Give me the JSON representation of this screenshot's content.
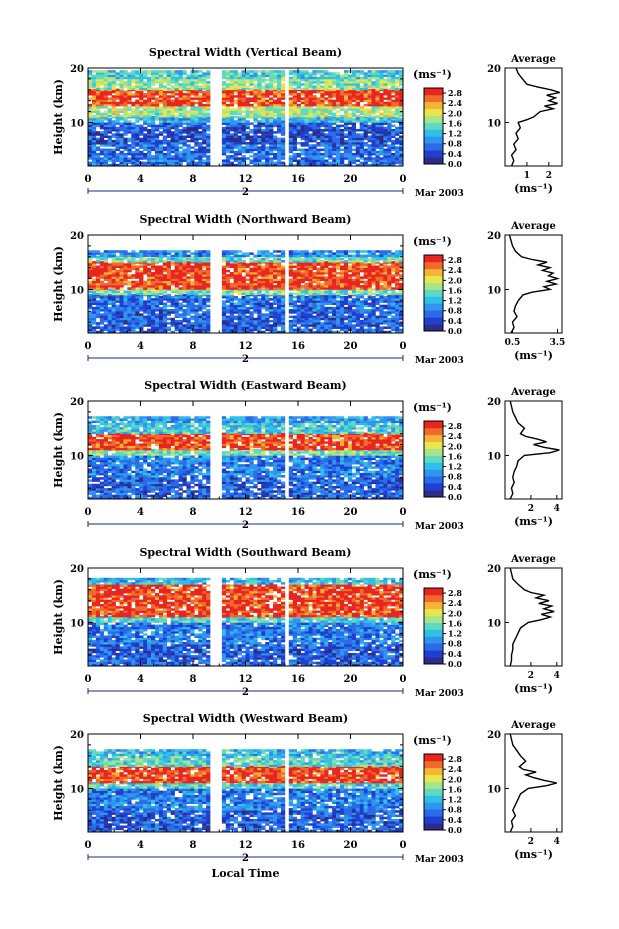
{
  "figure": {
    "x_title": "Local Time",
    "date_label": "Mar 2003",
    "day_label": "2",
    "colorbar_unit": "(ms⁻¹)",
    "colorbar_ticks": [
      "0.0",
      "0.4",
      "0.8",
      "1.2",
      "1.6",
      "2.0",
      "2.4",
      "2.8"
    ],
    "avg_title": "Average",
    "avg_unit": "(ms⁻¹)"
  },
  "colors": {
    "colormap": [
      "#2b2c8c",
      "#1f3fd0",
      "#2a6be8",
      "#2f95ef",
      "#2fc0e8",
      "#5fd9c0",
      "#a6e58a",
      "#e8e64a",
      "#f5b338",
      "#ef6a2c",
      "#e8251e"
    ]
  },
  "chart_data": [
    {
      "type": "heatmap",
      "title": "Spectral Width (Vertical Beam)",
      "xlabel": "",
      "ylabel": "Height (km)",
      "x_ticks": [
        "0",
        "4",
        "8",
        "12",
        "16",
        "20",
        "0"
      ],
      "y_ticks": [
        "10",
        "20"
      ],
      "ylim": [
        2,
        20
      ],
      "colorbar_range": [
        0.0,
        3.0
      ],
      "data_gaps_hours": [
        [
          9.2,
          10.2
        ],
        [
          14.9,
          15.2
        ],
        [
          19.0,
          19.2
        ]
      ],
      "layers_km": [
        {
          "from": 2,
          "to": 6,
          "value": 0.7
        },
        {
          "from": 6,
          "to": 10,
          "value": 0.5
        },
        {
          "from": 10,
          "to": 11,
          "value": 1.2
        },
        {
          "from": 11,
          "to": 13,
          "value": 1.8
        },
        {
          "from": 13,
          "to": 16,
          "value": 2.8
        },
        {
          "from": 16,
          "to": 18,
          "value": 1.7
        },
        {
          "from": 18,
          "to": 19.5,
          "value": 1.4
        }
      ],
      "average_profile": {
        "title": "Average",
        "xlabel": "(ms⁻¹)",
        "x_ticks": [
          "1",
          "2"
        ],
        "xlim": [
          0,
          2.6
        ],
        "y_ticks": [
          "10",
          "20"
        ],
        "ylim": [
          2,
          20
        ],
        "points": [
          [
            0.3,
            2
          ],
          [
            0.4,
            3
          ],
          [
            0.3,
            4
          ],
          [
            0.5,
            5
          ],
          [
            0.4,
            6
          ],
          [
            0.6,
            7
          ],
          [
            0.5,
            8
          ],
          [
            0.7,
            9
          ],
          [
            0.6,
            10
          ],
          [
            1.0,
            10.5
          ],
          [
            1.3,
            11
          ],
          [
            1.6,
            12
          ],
          [
            2.2,
            12.5
          ],
          [
            1.8,
            13
          ],
          [
            2.4,
            13.5
          ],
          [
            2.0,
            14
          ],
          [
            2.3,
            14.5
          ],
          [
            1.9,
            15
          ],
          [
            2.5,
            15.5
          ],
          [
            2.1,
            16
          ],
          [
            1.5,
            16.5
          ],
          [
            1.0,
            17
          ],
          [
            0.8,
            18
          ],
          [
            0.6,
            19
          ],
          [
            0.5,
            20
          ]
        ]
      }
    },
    {
      "type": "heatmap",
      "title": "Spectral Width (Northward Beam)",
      "xlabel": "",
      "ylabel": "Height (km)",
      "x_ticks": [
        "0",
        "4",
        "8",
        "12",
        "16",
        "20",
        "0"
      ],
      "y_ticks": [
        "10",
        "20"
      ],
      "ylim": [
        2,
        20
      ],
      "colorbar_range": [
        0.0,
        3.0
      ],
      "data_gaps_hours": [
        [
          9.2,
          10.2
        ],
        [
          14.9,
          15.2
        ],
        [
          19.0,
          19.2
        ]
      ],
      "layers_km": [
        {
          "from": 2,
          "to": 6,
          "value": 0.6
        },
        {
          "from": 6,
          "to": 9,
          "value": 0.7
        },
        {
          "from": 9,
          "to": 10,
          "value": 1.6
        },
        {
          "from": 10,
          "to": 15,
          "value": 2.8
        },
        {
          "from": 15,
          "to": 16,
          "value": 1.5
        },
        {
          "from": 16,
          "to": 17,
          "value": 0.9
        }
      ],
      "average_profile": {
        "title": "Average",
        "xlabel": "(ms⁻¹)",
        "x_ticks": [
          "0.5",
          "3.5"
        ],
        "xlim": [
          0,
          3.8
        ],
        "y_ticks": [
          "10",
          "20"
        ],
        "ylim": [
          2,
          20
        ],
        "points": [
          [
            0.4,
            2
          ],
          [
            0.6,
            3
          ],
          [
            0.5,
            4
          ],
          [
            0.8,
            5
          ],
          [
            0.6,
            6
          ],
          [
            0.7,
            7
          ],
          [
            0.9,
            8
          ],
          [
            1.2,
            9
          ],
          [
            1.8,
            9.5
          ],
          [
            3.0,
            10
          ],
          [
            2.6,
            10.5
          ],
          [
            3.4,
            11
          ],
          [
            2.8,
            11.5
          ],
          [
            3.5,
            12
          ],
          [
            2.9,
            12.5
          ],
          [
            3.2,
            13
          ],
          [
            2.5,
            13.5
          ],
          [
            3.0,
            14
          ],
          [
            2.2,
            14.5
          ],
          [
            2.8,
            15
          ],
          [
            1.8,
            15.5
          ],
          [
            1.1,
            16
          ],
          [
            0.7,
            17
          ],
          [
            0.5,
            18
          ],
          [
            0.4,
            19
          ],
          [
            0.3,
            20
          ]
        ]
      }
    },
    {
      "type": "heatmap",
      "title": "Spectral Width (Eastward Beam)",
      "xlabel": "",
      "ylabel": "Height (km)",
      "x_ticks": [
        "0",
        "4",
        "8",
        "12",
        "16",
        "20",
        "0"
      ],
      "y_ticks": [
        "10",
        "20"
      ],
      "ylim": [
        2,
        20
      ],
      "colorbar_range": [
        0.0,
        3.0
      ],
      "data_gaps_hours": [
        [
          9.2,
          10.2
        ],
        [
          14.9,
          15.2
        ],
        [
          19.0,
          19.2
        ]
      ],
      "layers_km": [
        {
          "from": 2,
          "to": 6,
          "value": 0.6
        },
        {
          "from": 6,
          "to": 10,
          "value": 0.8
        },
        {
          "from": 10,
          "to": 11,
          "value": 1.6
        },
        {
          "from": 11,
          "to": 14,
          "value": 2.8
        },
        {
          "from": 14,
          "to": 16,
          "value": 1.3
        },
        {
          "from": 16,
          "to": 17,
          "value": 1.0
        }
      ],
      "average_profile": {
        "title": "Average",
        "xlabel": "(ms⁻¹)",
        "x_ticks": [
          "2",
          "4"
        ],
        "xlim": [
          0,
          4.4
        ],
        "y_ticks": [
          "10",
          "20"
        ],
        "ylim": [
          2,
          20
        ],
        "points": [
          [
            0.4,
            2
          ],
          [
            0.6,
            3
          ],
          [
            0.5,
            4
          ],
          [
            0.7,
            5
          ],
          [
            0.6,
            6
          ],
          [
            0.7,
            7
          ],
          [
            0.9,
            8
          ],
          [
            1.0,
            9
          ],
          [
            1.5,
            10
          ],
          [
            3.5,
            10.5
          ],
          [
            4.2,
            11
          ],
          [
            3.0,
            11.5
          ],
          [
            2.2,
            12
          ],
          [
            3.2,
            12.5
          ],
          [
            2.5,
            13
          ],
          [
            1.6,
            13.5
          ],
          [
            1.2,
            14
          ],
          [
            1.5,
            15
          ],
          [
            1.0,
            16
          ],
          [
            0.8,
            17
          ],
          [
            0.6,
            18
          ],
          [
            0.5,
            19
          ],
          [
            0.4,
            20
          ]
        ]
      }
    },
    {
      "type": "heatmap",
      "title": "Spectral Width (Southward Beam)",
      "xlabel": "",
      "ylabel": "Height (km)",
      "x_ticks": [
        "0",
        "4",
        "8",
        "12",
        "16",
        "20",
        "0"
      ],
      "y_ticks": [
        "10",
        "20"
      ],
      "ylim": [
        2,
        20
      ],
      "colorbar_range": [
        0.0,
        3.0
      ],
      "data_gaps_hours": [
        [
          9.2,
          10.2
        ],
        [
          14.9,
          15.2
        ],
        [
          19.0,
          19.2
        ]
      ],
      "layers_km": [
        {
          "from": 2,
          "to": 6,
          "value": 0.6
        },
        {
          "from": 6,
          "to": 10,
          "value": 0.8
        },
        {
          "from": 10,
          "to": 11,
          "value": 1.4
        },
        {
          "from": 11,
          "to": 17,
          "value": 2.8
        },
        {
          "from": 17,
          "to": 18,
          "value": 1.2
        }
      ],
      "average_profile": {
        "title": "Average",
        "xlabel": "(ms⁻¹)",
        "x_ticks": [
          "2",
          "4"
        ],
        "xlim": [
          0,
          4.4
        ],
        "y_ticks": [
          "10",
          "20"
        ],
        "ylim": [
          2,
          20
        ],
        "points": [
          [
            0.4,
            2
          ],
          [
            0.5,
            3
          ],
          [
            0.5,
            4
          ],
          [
            0.6,
            5
          ],
          [
            0.6,
            6
          ],
          [
            0.8,
            7
          ],
          [
            1.0,
            8
          ],
          [
            1.2,
            9
          ],
          [
            1.8,
            10
          ],
          [
            2.8,
            10.5
          ],
          [
            3.5,
            11
          ],
          [
            2.8,
            11.5
          ],
          [
            3.8,
            12
          ],
          [
            3.0,
            12.5
          ],
          [
            3.6,
            13
          ],
          [
            2.6,
            13.5
          ],
          [
            3.4,
            14
          ],
          [
            2.4,
            14.5
          ],
          [
            3.0,
            15
          ],
          [
            2.0,
            15.5
          ],
          [
            1.5,
            16
          ],
          [
            1.0,
            17
          ],
          [
            0.6,
            18
          ],
          [
            0.5,
            19
          ],
          [
            0.4,
            20
          ]
        ]
      }
    },
    {
      "type": "heatmap",
      "title": "Spectral Width (Westward Beam)",
      "xlabel": "Local Time",
      "ylabel": "Height (km)",
      "x_ticks": [
        "0",
        "4",
        "8",
        "12",
        "16",
        "20",
        "0"
      ],
      "y_ticks": [
        "10",
        "20"
      ],
      "ylim": [
        2,
        20
      ],
      "colorbar_range": [
        0.0,
        3.0
      ],
      "data_gaps_hours": [
        [
          9.2,
          10.2
        ],
        [
          14.9,
          15.2
        ],
        [
          19.0,
          19.2
        ]
      ],
      "layers_km": [
        {
          "from": 2,
          "to": 6,
          "value": 0.6
        },
        {
          "from": 6,
          "to": 10,
          "value": 0.8
        },
        {
          "from": 10,
          "to": 11,
          "value": 1.4
        },
        {
          "from": 11,
          "to": 14,
          "value": 2.8
        },
        {
          "from": 14,
          "to": 16,
          "value": 1.4
        },
        {
          "from": 16,
          "to": 17,
          "value": 1.2
        }
      ],
      "average_profile": {
        "title": "Average",
        "xlabel": "(ms⁻¹)",
        "x_ticks": [
          "2",
          "4"
        ],
        "xlim": [
          0,
          4.4
        ],
        "y_ticks": [
          "10",
          "20"
        ],
        "ylim": [
          2,
          20
        ],
        "points": [
          [
            0.4,
            2
          ],
          [
            0.6,
            3
          ],
          [
            0.5,
            4
          ],
          [
            0.8,
            5
          ],
          [
            0.6,
            6
          ],
          [
            0.8,
            7
          ],
          [
            1.0,
            8
          ],
          [
            1.2,
            9
          ],
          [
            1.8,
            10
          ],
          [
            3.2,
            10.5
          ],
          [
            4.0,
            11
          ],
          [
            3.0,
            11.5
          ],
          [
            2.2,
            12
          ],
          [
            1.6,
            12.5
          ],
          [
            2.4,
            13
          ],
          [
            1.4,
            13.5
          ],
          [
            1.1,
            14
          ],
          [
            1.6,
            15
          ],
          [
            1.2,
            16
          ],
          [
            0.9,
            17
          ],
          [
            0.6,
            18
          ],
          [
            0.5,
            19
          ],
          [
            0.4,
            20
          ]
        ]
      }
    }
  ]
}
